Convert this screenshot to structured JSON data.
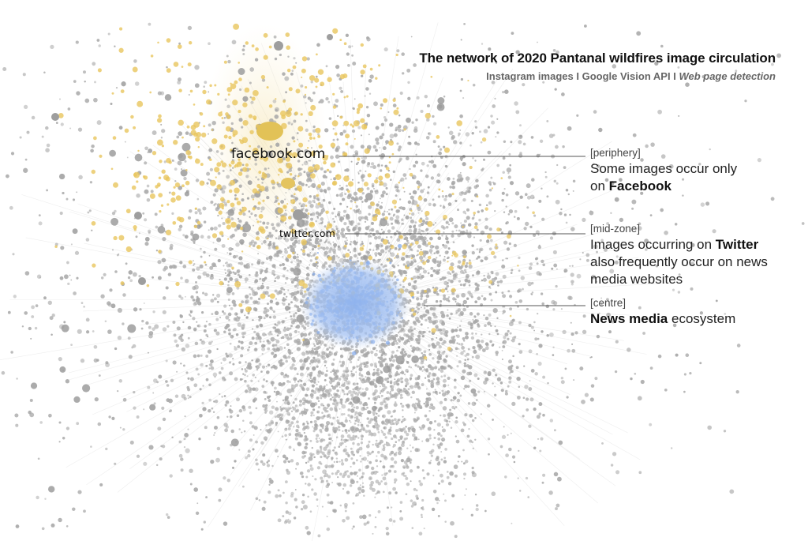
{
  "title": "The network of 2020 Pantanal wildfires image circulation",
  "subtitle": {
    "part1": "Instagram images",
    "sep1": "I",
    "part2": "Google Vision API",
    "sep2": "I",
    "part3": "Web page detection"
  },
  "nodes": {
    "facebook": "facebook.com",
    "twitter": "twitter.com"
  },
  "annotations": {
    "periphery": {
      "tag": "[periphery]",
      "line1": "Some images occur only",
      "line2_pre": "on ",
      "line2_bold": "Facebook"
    },
    "midzone": {
      "tag": "[mid-zone]",
      "line1_pre": "Images occurring on ",
      "line1_bold": "Twitter",
      "line2": "also frequently occur on news",
      "line3": "media websites"
    },
    "centre": {
      "tag": "[centre]",
      "line1_bold": "News media",
      "line1_post": " ecosystem"
    }
  },
  "colors": {
    "node_grey": "#a9a9a9",
    "node_yellow": "#e8c55e",
    "node_blue": "#8fb3ee",
    "edge": "#dedede",
    "leader": "#555555"
  }
}
